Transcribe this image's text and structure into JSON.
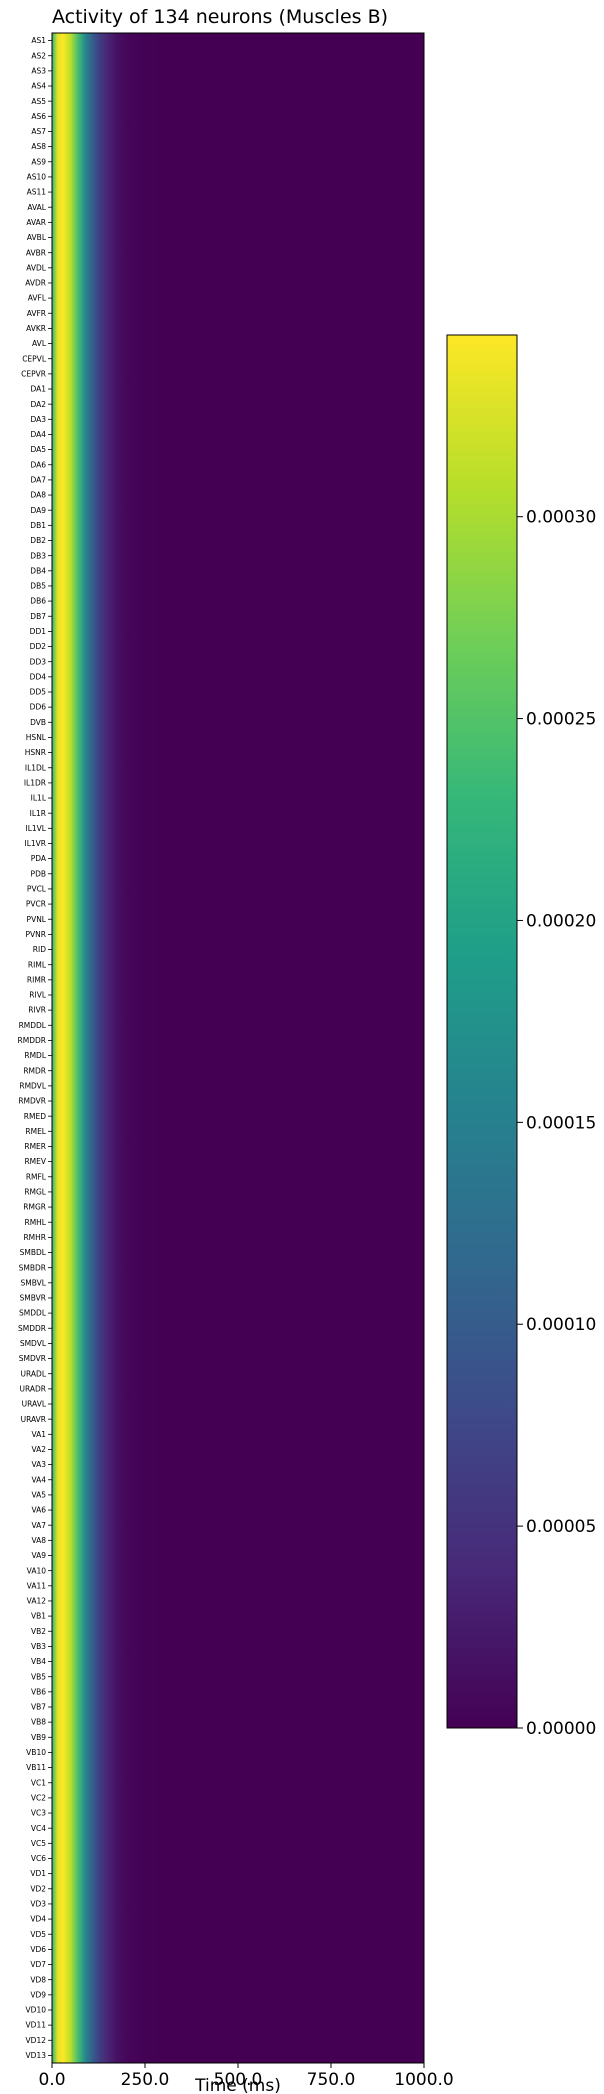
{
  "chart_data": {
    "type": "heatmap",
    "title": "Activity of 134 neurons (Muscles B)",
    "xlabel": "Time (ms)",
    "ylabel": "",
    "xlim": [
      0,
      1000
    ],
    "x_tick_labels": [
      "0.0",
      "250.0",
      "500.0",
      "750.0",
      "1000.0"
    ],
    "x_ticks": [
      0,
      250,
      500,
      750,
      1000
    ],
    "colormap": "viridis",
    "colors": {
      "viridis_stops": [
        "#440154",
        "#482878",
        "#3e4989",
        "#31688e",
        "#26828e",
        "#1f9e89",
        "#35b779",
        "#6ece58",
        "#b5de2b",
        "#fde725"
      ]
    },
    "colorbar": {
      "min": 0.0,
      "max": 0.000345,
      "ticks": [
        0.0,
        5e-05,
        0.0001,
        0.00015,
        0.0002,
        0.00025,
        0.0003
      ],
      "tick_labels": [
        "0.00000",
        "0.00005",
        "0.00010",
        "0.00015",
        "0.00020",
        "0.00025",
        "0.00030"
      ]
    },
    "profile_note_values": {
      "t_ms": [
        0,
        15,
        30,
        50,
        70,
        90,
        110,
        130,
        150,
        175,
        200,
        250,
        300,
        1000
      ],
      "activity": [
        0.00022,
        0.00033,
        0.000345,
        0.00031,
        0.00024,
        0.00016,
        0.0001,
        6e-05,
        3.5e-05,
        1.5e-05,
        6e-06,
        1e-06,
        0.0,
        0.0
      ]
    },
    "neurons": [
      "AS1",
      "AS2",
      "AS3",
      "AS4",
      "AS5",
      "AS6",
      "AS7",
      "AS8",
      "AS9",
      "AS10",
      "AS11",
      "AVAL",
      "AVAR",
      "AVBL",
      "AVBR",
      "AVDL",
      "AVDR",
      "AVFL",
      "AVFR",
      "AVKR",
      "AVL",
      "CEPVL",
      "CEPVR",
      "DA1",
      "DA2",
      "DA3",
      "DA4",
      "DA5",
      "DA6",
      "DA7",
      "DA8",
      "DA9",
      "DB1",
      "DB2",
      "DB3",
      "DB4",
      "DB5",
      "DB6",
      "DB7",
      "DD1",
      "DD2",
      "DD3",
      "DD4",
      "DD5",
      "DD6",
      "DVB",
      "HSNL",
      "HSNR",
      "IL1DL",
      "IL1DR",
      "IL1L",
      "IL1R",
      "IL1VL",
      "IL1VR",
      "PDA",
      "PDB",
      "PVCL",
      "PVCR",
      "PVNL",
      "PVNR",
      "RID",
      "RIML",
      "RIMR",
      "RIVL",
      "RIVR",
      "RMDDL",
      "RMDDR",
      "RMDL",
      "RMDR",
      "RMDVL",
      "RMDVR",
      "RMED",
      "RMEL",
      "RMER",
      "RMEV",
      "RMFL",
      "RMGL",
      "RMGR",
      "RMHL",
      "RMHR",
      "SMBDL",
      "SMBDR",
      "SMBVL",
      "SMBVR",
      "SMDDL",
      "SMDDR",
      "SMDVL",
      "SMDVR",
      "URADL",
      "URADR",
      "URAVL",
      "URAVR",
      "VA1",
      "VA2",
      "VA3",
      "VA4",
      "VA5",
      "VA6",
      "VA7",
      "VA8",
      "VA9",
      "VA10",
      "VA11",
      "VA12",
      "VB1",
      "VB2",
      "VB3",
      "VB4",
      "VB5",
      "VB6",
      "VB7",
      "VB8",
      "VB9",
      "VB10",
      "VB11",
      "VC1",
      "VC2",
      "VC3",
      "VC4",
      "VC5",
      "VC6",
      "VD1",
      "VD2",
      "VD3",
      "VD4",
      "VD5",
      "VD6",
      "VD7",
      "VD8",
      "VD9",
      "VD10",
      "VD11",
      "VD12",
      "VD13"
    ]
  }
}
